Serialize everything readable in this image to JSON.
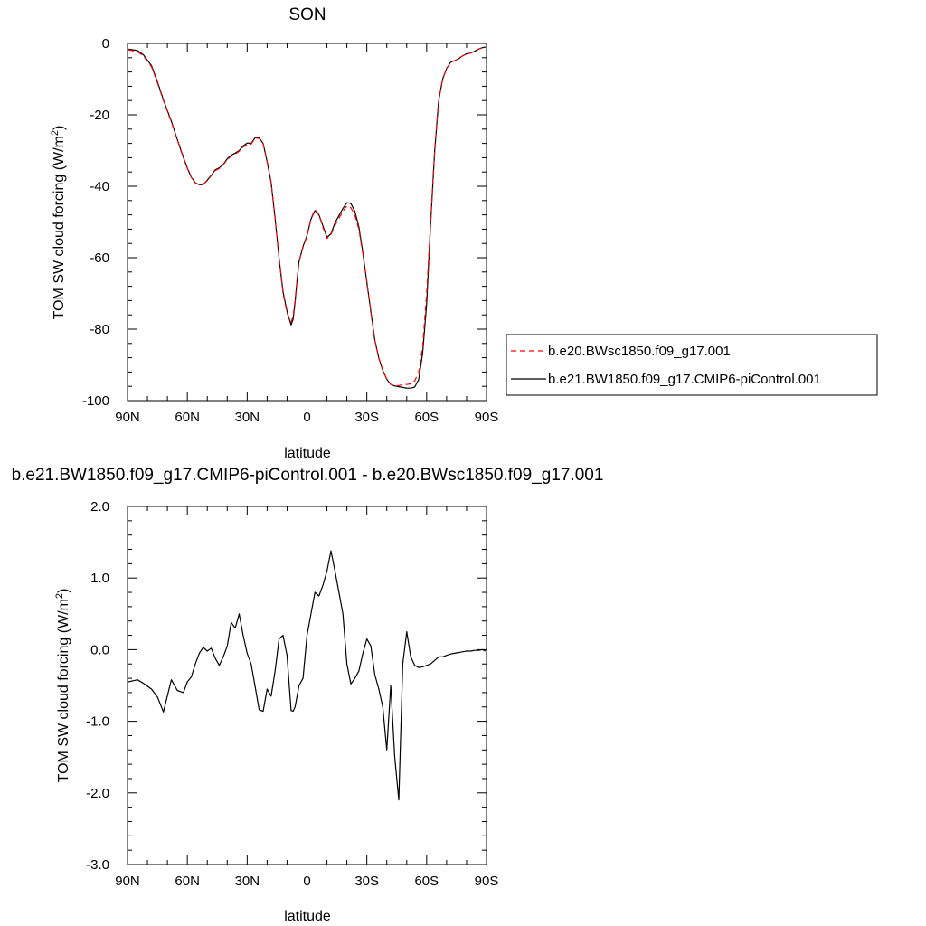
{
  "chart_data": [
    {
      "type": "line",
      "title": "SON",
      "xlabel": "latitude",
      "ylabel": "TOM SW cloud forcing (W/m",
      "ylabel_sup": "2",
      "ylabel_end": ")",
      "xlim": [
        90,
        -90
      ],
      "ylim": [
        -100,
        0
      ],
      "x_ticks": [
        {
          "value": 90,
          "label": "90N"
        },
        {
          "value": 60,
          "label": "60N"
        },
        {
          "value": 30,
          "label": "30N"
        },
        {
          "value": 0,
          "label": "0"
        },
        {
          "value": -30,
          "label": "30S"
        },
        {
          "value": -60,
          "label": "60S"
        },
        {
          "value": -90,
          "label": "90S"
        }
      ],
      "y_ticks": [
        {
          "value": 0,
          "label": "0"
        },
        {
          "value": -20,
          "label": "-20"
        },
        {
          "value": -40,
          "label": "-40"
        },
        {
          "value": -60,
          "label": "-60"
        },
        {
          "value": -80,
          "label": "-80"
        },
        {
          "value": -100,
          "label": "-100"
        }
      ],
      "legend_placement": "right",
      "series": [
        {
          "name": "b.e20.BWsc1850.f09_g17.001",
          "color": "#ff0000",
          "dashed": true,
          "x": [
            89.5,
            85,
            82,
            78,
            75,
            72,
            68,
            65,
            62,
            60,
            58,
            56,
            54,
            52,
            50,
            48,
            46,
            44,
            42,
            40,
            38,
            36,
            34,
            32,
            30,
            28,
            26,
            24,
            22,
            20,
            18,
            16,
            14,
            12,
            10,
            8,
            7,
            6,
            5,
            4,
            2,
            0,
            -2,
            -4,
            -6,
            -8,
            -10,
            -12,
            -14,
            -16,
            -18,
            -20,
            -22,
            -24,
            -26,
            -28,
            -30,
            -32,
            -34,
            -36,
            -38,
            -40,
            -42,
            -44,
            -46,
            -48,
            -50,
            -52,
            -54,
            -56,
            -58,
            -60,
            -62,
            -64,
            -66,
            -68,
            -70,
            -72,
            -74,
            -76,
            -78,
            -80,
            -82,
            -84,
            -86,
            -88,
            -89.5
          ],
          "y": [
            -1.8,
            -2.3,
            -3.5,
            -6.5,
            -11,
            -16,
            -22,
            -27,
            -32,
            -35,
            -37.5,
            -39,
            -39.6,
            -39.5,
            -38.4,
            -37,
            -35.6,
            -35,
            -34,
            -32.5,
            -31.6,
            -31,
            -30.2,
            -29,
            -28.3,
            -28.2,
            -26.5,
            -26.6,
            -28,
            -33,
            -39,
            -49,
            -60,
            -70,
            -75.5,
            -78,
            -76.5,
            -72,
            -66,
            -61,
            -57,
            -54,
            -49,
            -46.5,
            -48,
            -51.5,
            -54.6,
            -53.5,
            -51,
            -49,
            -47,
            -45.5,
            -46,
            -48,
            -52,
            -59,
            -67,
            -75,
            -83,
            -88,
            -91.5,
            -94,
            -95.5,
            -95.8,
            -95.8,
            -95.5,
            -95.5,
            -95.3,
            -94.5,
            -92,
            -85,
            -70,
            -50,
            -30,
            -16,
            -10,
            -7,
            -5.3,
            -4.8,
            -4.3,
            -3.5,
            -2.9,
            -2.7,
            -2.2,
            -1.6,
            -1.2,
            -1.0
          ]
        },
        {
          "name": "b.e21.BW1850.f09_g17.CMIP6-piControl.001",
          "color": "#000000",
          "dashed": false,
          "x": [
            89.5,
            85,
            82,
            78,
            75,
            72,
            68,
            65,
            62,
            60,
            58,
            56,
            54,
            52,
            50,
            48,
            46,
            44,
            42,
            40,
            38,
            36,
            34,
            32,
            30,
            28,
            26,
            24,
            22,
            20,
            18,
            16,
            14,
            12,
            10,
            8,
            7,
            6,
            5,
            4,
            2,
            0,
            -2,
            -4,
            -6,
            -8,
            -10,
            -12,
            -14,
            -16,
            -18,
            -20,
            -22,
            -24,
            -26,
            -28,
            -30,
            -32,
            -34,
            -36,
            -38,
            -40,
            -42,
            -44,
            -46,
            -48,
            -50,
            -52,
            -54,
            -56,
            -58,
            -60,
            -62,
            -64,
            -66,
            -68,
            -70,
            -72,
            -74,
            -76,
            -78,
            -80,
            -82,
            -84,
            -86,
            -88,
            -89.5
          ],
          "y": [
            -1.6,
            -2.0,
            -3.2,
            -6.2,
            -10.7,
            -15.8,
            -21.8,
            -26.9,
            -31.9,
            -34.9,
            -37.5,
            -39.0,
            -39.6,
            -39.5,
            -38.3,
            -36.9,
            -35.4,
            -34.8,
            -33.9,
            -32.3,
            -31.3,
            -30.7,
            -30.0,
            -28.7,
            -27.9,
            -28.0,
            -26.4,
            -26.4,
            -28.0,
            -33.1,
            -38.9,
            -48.9,
            -60.1,
            -69.6,
            -75.0,
            -78.8,
            -77.3,
            -72.5,
            -66.3,
            -61.1,
            -56.8,
            -53.8,
            -49.2,
            -46.8,
            -48.0,
            -51.1,
            -54.3,
            -53.3,
            -50.3,
            -48.2,
            -46.2,
            -44.6,
            -44.8,
            -47.0,
            -51.3,
            -58.6,
            -66.9,
            -75.1,
            -83.1,
            -88.1,
            -91.6,
            -94.0,
            -95.5,
            -95.9,
            -96.1,
            -96.3,
            -96.5,
            -96.5,
            -96.2,
            -94.1,
            -86.7,
            -73.0,
            -50.5,
            -30.1,
            -16.0,
            -10.0,
            -7.0,
            -5.3,
            -4.8,
            -4.3,
            -3.5,
            -2.9,
            -2.7,
            -2.2,
            -1.6,
            -1.2,
            -1.0
          ]
        }
      ]
    },
    {
      "type": "line",
      "title": "b.e21.BW1850.f09_g17.CMIP6-piControl.001 - b.e20.BWsc1850.f09_g17.001",
      "xlabel": "latitude",
      "ylabel": "TOM SW cloud forcing (W/m",
      "ylabel_sup": "2",
      "ylabel_end": ")",
      "xlim": [
        90,
        -90
      ],
      "ylim": [
        -3.0,
        2.0
      ],
      "x_ticks": [
        {
          "value": 90,
          "label": "90N"
        },
        {
          "value": 60,
          "label": "60N"
        },
        {
          "value": 30,
          "label": "30N"
        },
        {
          "value": 0,
          "label": "0"
        },
        {
          "value": -30,
          "label": "30S"
        },
        {
          "value": -60,
          "label": "60S"
        },
        {
          "value": -90,
          "label": "90S"
        }
      ],
      "y_ticks": [
        {
          "value": 2.0,
          "label": "2.0"
        },
        {
          "value": 1.0,
          "label": "1.0"
        },
        {
          "value": 0.0,
          "label": "0.0"
        },
        {
          "value": -1.0,
          "label": "-1.0"
        },
        {
          "value": -2.0,
          "label": "-2.0"
        },
        {
          "value": -3.0,
          "label": "-3.0"
        }
      ],
      "series": [
        {
          "color": "#000000",
          "dashed": false,
          "x": [
            89.5,
            85,
            82,
            78,
            75,
            72,
            68,
            65,
            62,
            60,
            58,
            56,
            54,
            52,
            50,
            48,
            46,
            44,
            42,
            40,
            38,
            36,
            34,
            32,
            30,
            28,
            26,
            24,
            22,
            20,
            18,
            16,
            14,
            12,
            10,
            8,
            7,
            6,
            5,
            4,
            2,
            0,
            -2,
            -4,
            -6,
            -8,
            -10,
            -12,
            -14,
            -16,
            -18,
            -20,
            -22,
            -24,
            -26,
            -28,
            -30,
            -32,
            -34,
            -36,
            -38,
            -40,
            -42,
            -44,
            -46,
            -48,
            -50,
            -52,
            -54,
            -56,
            -58,
            -60,
            -62,
            -64,
            -66,
            -68,
            -70,
            -72,
            -74,
            -76,
            -78,
            -80,
            -82,
            -84,
            -86,
            -88,
            -89.5
          ],
          "y": [
            -0.45,
            -0.42,
            -0.47,
            -0.55,
            -0.66,
            -0.87,
            -0.42,
            -0.57,
            -0.6,
            -0.45,
            -0.38,
            -0.2,
            -0.05,
            0.03,
            -0.02,
            0.02,
            -0.12,
            -0.22,
            -0.1,
            0.05,
            0.38,
            0.3,
            0.5,
            0.2,
            -0.05,
            -0.2,
            -0.52,
            -0.84,
            -0.86,
            -0.55,
            -0.65,
            -0.3,
            0.15,
            0.2,
            -0.08,
            -0.85,
            -0.86,
            -0.8,
            -0.65,
            -0.5,
            -0.4,
            0.2,
            0.5,
            0.8,
            0.75,
            0.9,
            1.1,
            1.38,
            1.1,
            0.8,
            0.5,
            -0.2,
            -0.48,
            -0.4,
            -0.3,
            -0.05,
            0.15,
            0.05,
            -0.35,
            -0.55,
            -0.8,
            -1.4,
            -0.5,
            -1.5,
            -2.1,
            -0.2,
            0.25,
            -0.1,
            -0.22,
            -0.25,
            -0.24,
            -0.22,
            -0.2,
            -0.15,
            -0.1,
            -0.1,
            -0.08,
            -0.06,
            -0.05,
            -0.04,
            -0.03,
            -0.02,
            -0.02,
            -0.01,
            -0.01,
            0.0,
            -0.02
          ]
        }
      ]
    }
  ]
}
